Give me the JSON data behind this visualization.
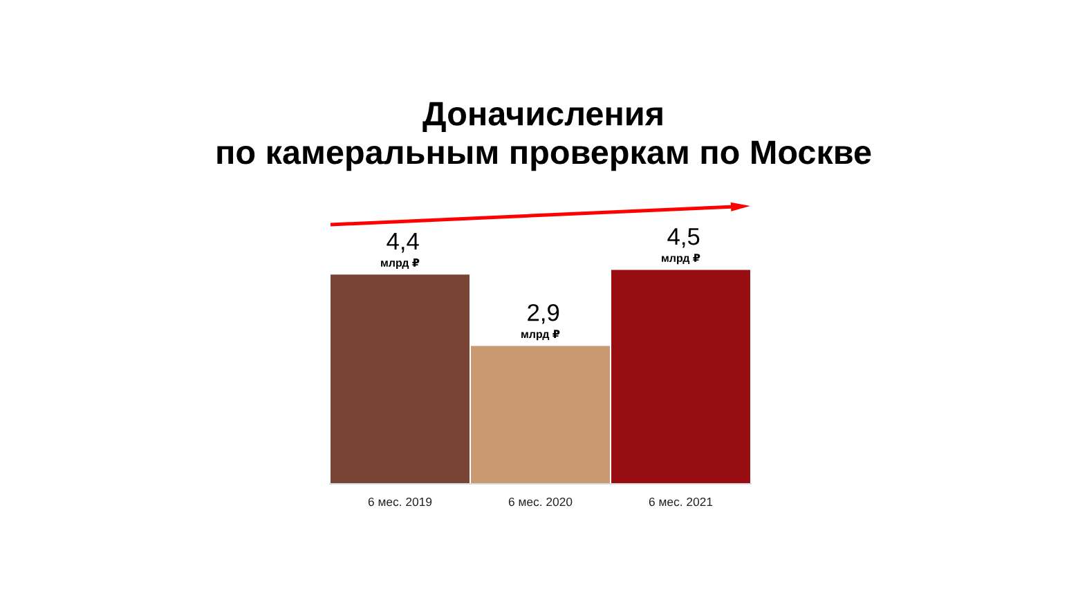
{
  "chart_data": {
    "type": "bar",
    "title": "Доначисления\nпо камеральным проверкам по Москве",
    "categories": [
      "6 мес. 2019",
      "6 мес. 2020",
      "6 мес. 2021"
    ],
    "values": [
      4.4,
      2.9,
      4.5
    ],
    "colors": [
      "#784433",
      "#c99a72",
      "#980d12"
    ],
    "value_labels": [
      "4,4",
      "2,9",
      "4,5"
    ],
    "annotations": [
      {
        "text": "млрд ₽",
        "x": "6 мес. 2019",
        "y": 4.4
      },
      {
        "text": "млрд ₽",
        "x": "6 мес. 2020",
        "y": 2.9
      },
      {
        "text": "млрд ₽",
        "x": "6 мес. 2021",
        "y": 4.5
      }
    ],
    "tick_labels": "x",
    "grid": false
  }
}
